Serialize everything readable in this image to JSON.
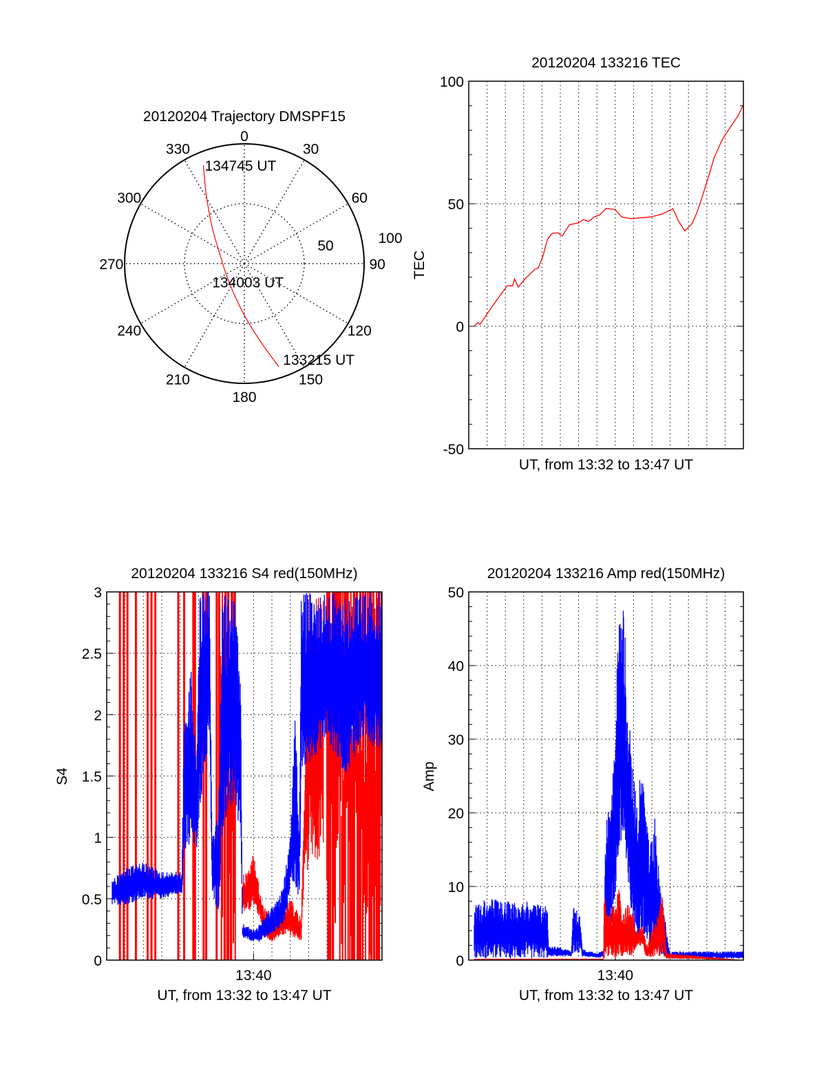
{
  "chart_data": [
    {
      "type": "polar",
      "title": "20120204 Trajectory DMSPF15",
      "angle_labels": [
        "0",
        "30",
        "60",
        "90",
        "120",
        "150",
        "180",
        "210",
        "240",
        "270",
        "300",
        "330"
      ],
      "radial_labels": [
        "50",
        "100"
      ],
      "rlim": [
        0,
        100
      ],
      "trajectory": {
        "color": "#ff0000",
        "points_azimuth_deg_radius": [
          [
            337.4,
            89
          ],
          [
            330.9,
            65.3
          ],
          [
            318.3,
            40.4
          ],
          [
            289.4,
            21.4
          ],
          [
            241.7,
            17.5
          ],
          [
            195.6,
            28.6
          ],
          [
            177.6,
            46.8
          ],
          [
            167.2,
            69.6
          ],
          [
            161.5,
            90.9
          ]
        ]
      },
      "annotations": [
        {
          "text": "134745 UT",
          "point_index": 0
        },
        {
          "text": "134003 UT",
          "point_index": 4
        },
        {
          "text": "133215 UT",
          "point_index": 8
        }
      ]
    },
    {
      "type": "line",
      "title": "20120204 133216 TEC",
      "xlabel": "UT, from 13:32 to 13:47 UT",
      "ylabel": "TEC",
      "xlim_minutes": [
        0,
        15
      ],
      "ylim": [
        -50,
        100
      ],
      "yticks": [
        "-50",
        "0",
        "50",
        "100"
      ],
      "color": "#ff0000",
      "x_minutes_after_1332": [
        0.29,
        0.5,
        0.62,
        1.0,
        1.5,
        2.1,
        2.4,
        2.5,
        2.7,
        3.1,
        3.6,
        3.8,
        4.05,
        4.3,
        4.55,
        4.85,
        5.1,
        5.5,
        6.0,
        6.25,
        6.55,
        6.85,
        7.15,
        7.5,
        8.0,
        8.35,
        8.85,
        9.95,
        10.6,
        11.15,
        11.45,
        11.8,
        12.2,
        12.45,
        12.7,
        13.1,
        13.4,
        13.85,
        14.35,
        14.7,
        15.0
      ],
      "values": [
        0,
        1.5,
        0.8,
        5,
        10.4,
        16.5,
        16.5,
        19.3,
        16,
        19.5,
        23.2,
        23.8,
        28.6,
        35.5,
        37.9,
        38.2,
        36.8,
        41.4,
        42.2,
        43.5,
        42.8,
        44.6,
        45.4,
        48.1,
        47.6,
        44.6,
        43.9,
        44.6,
        45.9,
        48,
        43,
        38.9,
        41.9,
        46.2,
        51.6,
        61.2,
        68.7,
        76.2,
        82,
        85.8,
        90.4
      ]
    },
    {
      "type": "line",
      "title": "20120204 133216 S4 red(150MHz)",
      "xlabel": "UT, from 13:32 to 13:47 UT",
      "ylabel": "S4",
      "xtick_label": "13:40",
      "xtick_minutes": 8,
      "xlim_minutes": [
        0,
        15
      ],
      "ylim": [
        0,
        3
      ],
      "yticks": [
        "0",
        "0.5",
        "1",
        "1.5",
        "2",
        "2.5",
        "3"
      ],
      "series": [
        {
          "name": "blue",
          "color": "#0000ff",
          "envelope_t_lo_hi": [
            [
              0.3,
              0.45,
              0.65
            ],
            [
              1,
              0.45,
              0.75
            ],
            [
              2,
              0.5,
              0.8
            ],
            [
              3,
              0.5,
              0.72
            ],
            [
              4.1,
              0.55,
              0.72
            ],
            [
              4.2,
              0.8,
              1.9
            ],
            [
              4.6,
              0.9,
              2.4
            ],
            [
              4.9,
              0.9,
              1.6
            ],
            [
              5.05,
              1.2,
              3
            ],
            [
              5.6,
              1.8,
              3
            ],
            [
              5.75,
              0.5,
              1.0
            ],
            [
              6.1,
              0.4,
              1.2
            ],
            [
              6.3,
              1.0,
              3
            ],
            [
              7.0,
              1.3,
              3
            ],
            [
              7.3,
              0.9,
              2.2
            ],
            [
              7.4,
              0.18,
              0.3
            ],
            [
              8.0,
              0.15,
              0.25
            ],
            [
              8.4,
              0.15,
              0.3
            ],
            [
              8.8,
              0.2,
              0.4
            ],
            [
              9.4,
              0.25,
              0.5
            ],
            [
              9.7,
              0.3,
              0.7
            ],
            [
              10.0,
              0.6,
              1.0
            ],
            [
              10.3,
              0.6,
              2.1
            ],
            [
              10.5,
              0.4,
              1.0
            ],
            [
              10.6,
              1.5,
              3
            ],
            [
              12,
              1.8,
              3
            ],
            [
              13,
              1.5,
              3
            ],
            [
              14,
              1.8,
              3
            ],
            [
              15,
              1.7,
              3
            ]
          ]
        },
        {
          "name": "red",
          "color": "#ff0000",
          "envelope_t_lo_hi": [
            [
              7.4,
              0.4,
              0.7
            ],
            [
              7.8,
              0.4,
              0.75
            ],
            [
              8.0,
              0.45,
              0.9
            ],
            [
              8.3,
              0.35,
              0.6
            ],
            [
              8.5,
              0.2,
              0.45
            ],
            [
              9.0,
              0.15,
              0.35
            ],
            [
              9.6,
              0.2,
              0.4
            ],
            [
              10.0,
              0.2,
              0.5
            ],
            [
              10.6,
              0.15,
              0.35
            ],
            [
              10.8,
              0.8,
              1.5
            ],
            [
              11.0,
              0.7,
              3
            ],
            [
              11.8,
              0.8,
              3
            ]
          ],
          "full_spikes_minutes": [
            0.72,
            0.93,
            1.13,
            1.59,
            2.23,
            2.44,
            2.65,
            3.9,
            4.22,
            4.72,
            4.81,
            5.28,
            5.42,
            5.99
          ],
          "dense_spike_ranges_minutes": [
            [
              6.1,
              7.0
            ],
            [
              12.0,
              15.0
            ]
          ]
        }
      ]
    },
    {
      "type": "line",
      "title": "20120204 133216 Amp red(150MHz)",
      "xlabel": "UT, from 13:32 to 13:47 UT",
      "ylabel": "Amp",
      "xtick_label": "13:40",
      "xtick_minutes": 8,
      "xlim_minutes": [
        0,
        15
      ],
      "ylim": [
        0,
        50
      ],
      "yticks": [
        "0",
        "10",
        "20",
        "30",
        "40",
        "50"
      ],
      "series": [
        {
          "name": "blue",
          "color": "#0000ff",
          "envelope_t_lo_hi": [
            [
              0.3,
              0.3,
              7.5
            ],
            [
              1,
              0.2,
              8.5
            ],
            [
              2,
              0.2,
              8
            ],
            [
              3,
              0.2,
              8
            ],
            [
              4.3,
              0.2,
              7.5
            ],
            [
              4.35,
              0.5,
              2
            ],
            [
              5.0,
              0.5,
              1.8
            ],
            [
              5.6,
              0.5,
              1.2
            ],
            [
              5.7,
              1,
              7.5
            ],
            [
              6.1,
              1,
              6
            ],
            [
              6.2,
              0.5,
              1.5
            ],
            [
              7.0,
              0.3,
              1
            ],
            [
              7.4,
              0.4,
              1.3
            ],
            [
              7.45,
              2,
              17
            ],
            [
              7.8,
              3,
              25
            ],
            [
              8.0,
              8,
              35
            ],
            [
              8.2,
              14,
              46
            ],
            [
              8.5,
              15,
              48
            ],
            [
              8.6,
              10,
              38
            ],
            [
              8.9,
              5,
              28
            ],
            [
              9.2,
              3,
              22
            ],
            [
              9.4,
              4,
              27
            ],
            [
              9.6,
              3,
              22
            ],
            [
              9.9,
              1,
              16
            ],
            [
              10.2,
              1,
              20
            ],
            [
              10.4,
              0.5,
              12
            ],
            [
              10.7,
              0.5,
              6
            ],
            [
              10.9,
              0.5,
              2
            ],
            [
              11,
              0.2,
              1.2
            ],
            [
              15,
              0.2,
              1.2
            ]
          ]
        },
        {
          "name": "red",
          "color": "#ff0000",
          "envelope_t_lo_hi": [
            [
              0.3,
              0,
              0.2
            ],
            [
              7.35,
              0,
              0.2
            ],
            [
              7.4,
              0,
              10
            ],
            [
              7.6,
              0.5,
              6
            ],
            [
              8.0,
              0.2,
              8
            ],
            [
              8.2,
              0.5,
              11
            ],
            [
              8.4,
              0.5,
              6
            ],
            [
              8.7,
              0.5,
              8
            ],
            [
              9.0,
              0.5,
              6
            ],
            [
              9.2,
              2,
              4
            ],
            [
              9.5,
              2,
              5
            ],
            [
              9.7,
              0.2,
              2
            ],
            [
              10.3,
              0.5,
              6
            ],
            [
              10.6,
              0.5,
              9
            ],
            [
              10.8,
              0.2,
              1
            ],
            [
              15,
              0,
              0
            ]
          ]
        }
      ]
    }
  ]
}
